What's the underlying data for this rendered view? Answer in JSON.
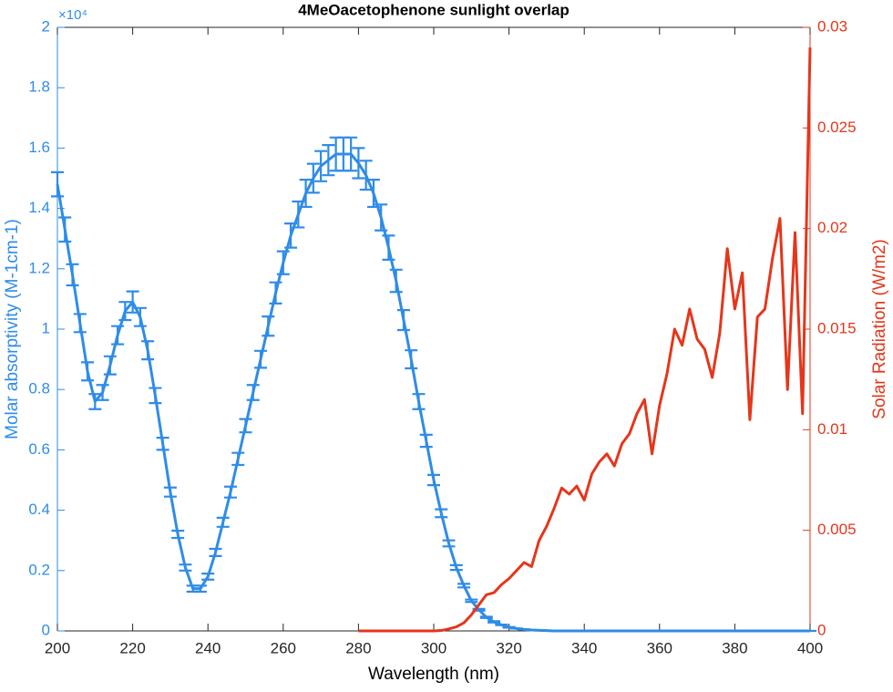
{
  "chart_data": {
    "type": "line",
    "title": "4MeOacetophenone sunlight overlap",
    "x_label": "Wavelength (nm)",
    "y_label": "Molar absorptivity (M-1cm-1)",
    "y2_label": "Solar Radiation (W/m2)",
    "y_exponent_label": "×10⁴",
    "xlim": [
      200,
      400
    ],
    "xticks": [
      200,
      220,
      240,
      260,
      280,
      300,
      320,
      340,
      360,
      380,
      400
    ],
    "ylim": [
      0,
      2
    ],
    "yticks": [
      0,
      0.2,
      0.4,
      0.6,
      0.8,
      1,
      1.2,
      1.4,
      1.6,
      1.8,
      2
    ],
    "y2lim": [
      0,
      0.03
    ],
    "y2ticks": [
      0,
      0.005,
      0.01,
      0.015,
      0.02,
      0.025,
      0.03
    ],
    "series": [
      {
        "color": "#2f8ce8",
        "x": [
          200,
          202,
          204,
          206,
          208,
          210,
          212,
          214,
          216,
          218,
          220,
          222,
          224,
          226,
          228,
          230,
          232,
          234,
          236,
          238,
          240,
          242,
          244,
          246,
          248,
          250,
          252,
          254,
          256,
          258,
          260,
          262,
          264,
          266,
          268,
          270,
          272,
          274,
          276,
          278,
          280,
          282,
          284,
          286,
          288,
          290,
          292,
          294,
          296,
          298,
          300,
          302,
          304,
          306,
          308,
          310,
          312,
          314,
          316,
          318,
          320,
          322,
          324,
          326,
          328,
          330,
          332,
          334,
          336,
          338,
          340,
          350,
          360,
          370,
          380,
          390,
          400
        ],
        "values": [
          1.48,
          1.33,
          1.18,
          1.02,
          0.86,
          0.76,
          0.79,
          0.88,
          0.98,
          1.06,
          1.09,
          1.04,
          0.93,
          0.78,
          0.62,
          0.46,
          0.32,
          0.21,
          0.14,
          0.14,
          0.18,
          0.26,
          0.36,
          0.46,
          0.57,
          0.68,
          0.79,
          0.9,
          1.01,
          1.12,
          1.22,
          1.31,
          1.38,
          1.45,
          1.5,
          1.54,
          1.56,
          1.58,
          1.58,
          1.58,
          1.55,
          1.51,
          1.45,
          1.37,
          1.27,
          1.16,
          1.03,
          0.9,
          0.76,
          0.63,
          0.5,
          0.39,
          0.29,
          0.21,
          0.15,
          0.1,
          0.07,
          0.045,
          0.03,
          0.02,
          0.012,
          0.008,
          0.005,
          0.003,
          0.002,
          0.001,
          0,
          0,
          0,
          0,
          0,
          0,
          0,
          0,
          0,
          0,
          0
        ],
        "errors": [
          0.04,
          0.04,
          0.035,
          0.03,
          0.03,
          0.025,
          0.025,
          0.03,
          0.03,
          0.03,
          0.035,
          0.03,
          0.03,
          0.025,
          0.02,
          0.015,
          0.012,
          0.01,
          0.01,
          0.01,
          0.01,
          0.012,
          0.015,
          0.018,
          0.02,
          0.022,
          0.025,
          0.028,
          0.032,
          0.035,
          0.038,
          0.04,
          0.043,
          0.045,
          0.048,
          0.05,
          0.05,
          0.055,
          0.055,
          0.055,
          0.05,
          0.048,
          0.045,
          0.043,
          0.04,
          0.037,
          0.033,
          0.03,
          0.025,
          0.02,
          0.017,
          0.013,
          0.01,
          0.008,
          0.006,
          0.004,
          0.003,
          0.002,
          0.002,
          0.001,
          0.001,
          0,
          0,
          0,
          0,
          0,
          0,
          0,
          0,
          0,
          0,
          0,
          0,
          0,
          0,
          0,
          0
        ]
      },
      {
        "color": "#e5361b",
        "axis": "y2",
        "x": [
          280,
          282,
          284,
          286,
          288,
          290,
          292,
          294,
          296,
          298,
          300,
          302,
          304,
          306,
          308,
          310,
          312,
          314,
          316,
          318,
          320,
          322,
          324,
          326,
          328,
          330,
          332,
          334,
          336,
          338,
          340,
          342,
          344,
          346,
          348,
          350,
          352,
          354,
          356,
          358,
          360,
          362,
          364,
          366,
          368,
          370,
          372,
          374,
          376,
          378,
          380,
          382,
          384,
          386,
          388,
          390,
          392,
          394,
          396,
          398,
          400
        ],
        "values": [
          0,
          0,
          0,
          0,
          0,
          0,
          0,
          0,
          0,
          0,
          0,
          2e-05,
          0.0001,
          0.0002,
          0.0004,
          0.0008,
          0.0013,
          0.0018,
          0.0019,
          0.0023,
          0.0026,
          0.003,
          0.0034,
          0.0032,
          0.0045,
          0.0052,
          0.0061,
          0.0071,
          0.0068,
          0.0072,
          0.0065,
          0.0078,
          0.0084,
          0.0088,
          0.0082,
          0.0093,
          0.0098,
          0.0108,
          0.0115,
          0.0088,
          0.0112,
          0.0128,
          0.015,
          0.0142,
          0.016,
          0.0145,
          0.014,
          0.0126,
          0.0148,
          0.019,
          0.016,
          0.0178,
          0.0105,
          0.0156,
          0.016,
          0.0185,
          0.0205,
          0.012,
          0.0198,
          0.0108,
          0.029
        ]
      }
    ]
  }
}
